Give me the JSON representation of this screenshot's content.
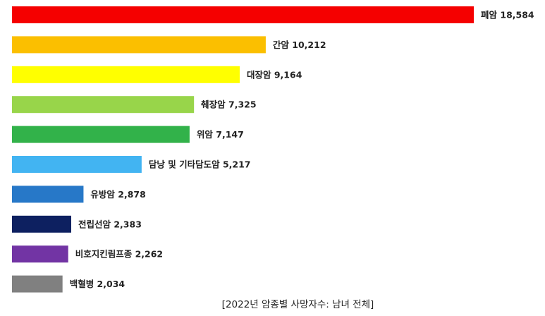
{
  "chart_data": {
    "type": "bar",
    "orientation": "horizontal",
    "title": "[2022년 암종별 사망자수: 남녀 전체]",
    "categories": [
      "폐암",
      "간암",
      "대장암",
      "췌장암",
      "위암",
      "담낭 및 기타담도암",
      "유방암",
      "전립선암",
      "비호지킨림프종",
      "백혈병"
    ],
    "values": [
      18584,
      10212,
      9164,
      7325,
      7147,
      5217,
      2878,
      2383,
      2262,
      2034
    ],
    "value_labels": [
      "18,584",
      "10,212",
      "9,164",
      "7,325",
      "7,147",
      "5,217",
      "2,878",
      "2,383",
      "2,262",
      "2,034"
    ],
    "colors": [
      "#f50000",
      "#fbbf00",
      "#ffff00",
      "#98d54a",
      "#32b24a",
      "#42b4f2",
      "#2778c8",
      "#0d2060",
      "#7234a4",
      "#808080"
    ],
    "xlim": [
      0,
      18584
    ],
    "grid": false,
    "legend": "none"
  }
}
